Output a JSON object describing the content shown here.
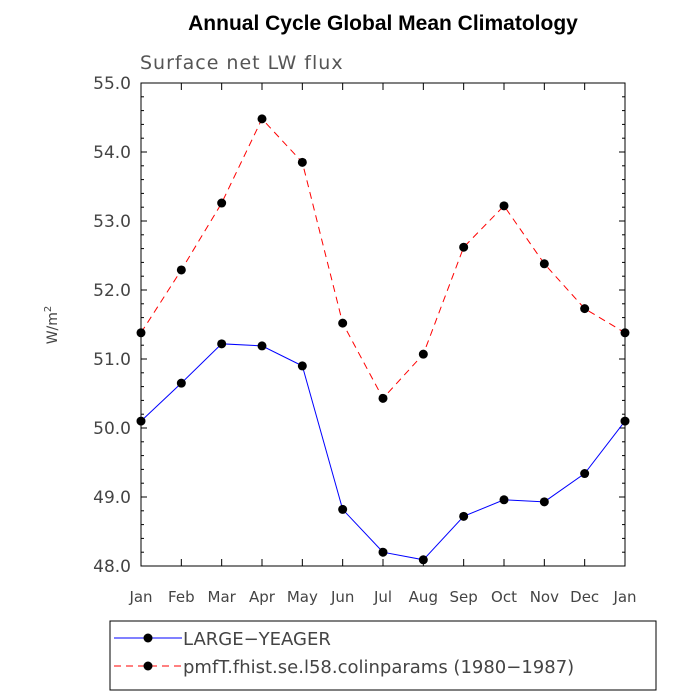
{
  "chart_data": {
    "type": "line",
    "title": "Annual Cycle Global Mean Climatology",
    "subtitle": "Surface net LW flux",
    "ylabel": "W/m",
    "ylabel_superscript": "2",
    "xlabel": "",
    "ylim": [
      48.0,
      55.0
    ],
    "yticks": [
      "48.0",
      "49.0",
      "50.0",
      "51.0",
      "52.0",
      "53.0",
      "54.0",
      "55.0"
    ],
    "categories": [
      "Jan",
      "Feb",
      "Mar",
      "Apr",
      "May",
      "Jun",
      "Jul",
      "Aug",
      "Sep",
      "Oct",
      "Nov",
      "Dec",
      "Jan"
    ],
    "series": [
      {
        "name": "LARGE−YEAGER",
        "color": "#0000ff",
        "dash": "solid",
        "values": [
          50.1,
          50.65,
          51.22,
          51.19,
          50.9,
          48.82,
          48.2,
          48.09,
          48.72,
          48.96,
          48.93,
          49.34,
          50.1
        ]
      },
      {
        "name": "pmfT.fhist.se.l58.colinparams (1980−1987)",
        "color": "#ff0000",
        "dash": "dashed",
        "values": [
          51.38,
          52.29,
          53.26,
          54.48,
          53.85,
          51.52,
          50.43,
          51.07,
          52.62,
          53.22,
          52.38,
          51.73,
          51.38
        ]
      }
    ],
    "legend": "bottom"
  }
}
